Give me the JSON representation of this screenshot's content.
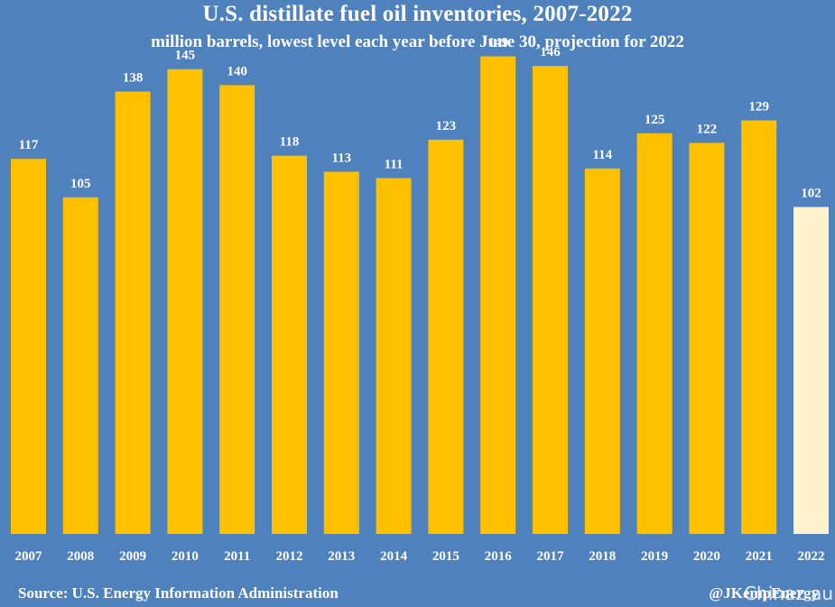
{
  "chart_data": {
    "type": "bar",
    "title": "U.S. distillate fuel oil inventories, 2007-2022",
    "subtitle": "million barrels, lowest level each year before June 30, projection for 2022",
    "categories": [
      "2007",
      "2008",
      "2009",
      "2010",
      "2011",
      "2012",
      "2013",
      "2014",
      "2015",
      "2016",
      "2017",
      "2018",
      "2019",
      "2020",
      "2021",
      "2022"
    ],
    "values": [
      117,
      105,
      138,
      145,
      140,
      118,
      113,
      111,
      123,
      149,
      146,
      114,
      125,
      122,
      129,
      102
    ],
    "projected_categories": [
      "2022"
    ],
    "ylim": [
      0,
      155
    ],
    "grid": false,
    "colors": {
      "background": "#4f81bd",
      "bar": "#ffc000",
      "projection_bar": "#fff2cc",
      "text": "#ffffff"
    }
  },
  "footer": {
    "source": "Source: U.S. Energy Information Administration",
    "credit": "@JKempEnergy",
    "watermark": "Chinaz au"
  }
}
